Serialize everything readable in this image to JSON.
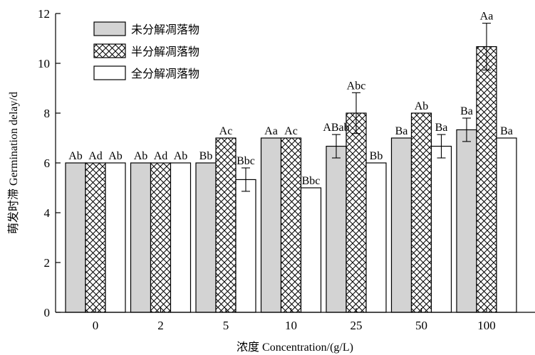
{
  "chart_data": {
    "type": "bar",
    "xlabel": "浓度 Concentration/(g/L)",
    "ylabel": "萌发时滞 Germination delay/d",
    "ylim": [
      0,
      12
    ],
    "yticks": [
      0,
      2,
      4,
      6,
      8,
      10,
      12
    ],
    "categories": [
      "0",
      "2",
      "5",
      "10",
      "25",
      "50",
      "100"
    ],
    "legend_position": "top-left",
    "series": [
      {
        "name": "未分解凋落物",
        "fill": "#d3d3d3",
        "pattern": "solid-gray",
        "values": [
          6,
          6,
          6,
          7,
          6.67,
          7,
          7.33
        ],
        "errors": [
          0,
          0,
          0,
          0,
          0.47,
          0,
          0.47
        ],
        "labels": [
          "Ab",
          "Ab",
          "Bb",
          "Aa",
          "ABab",
          "Ba",
          "Ba"
        ]
      },
      {
        "name": "半分解凋落物",
        "fill": "#ffffff",
        "pattern": "crosshatch",
        "values": [
          6,
          6,
          7,
          7,
          8,
          8,
          10.67
        ],
        "errors": [
          0,
          0,
          0,
          0,
          0.82,
          0,
          0.94
        ],
        "labels": [
          "Ad",
          "Ad",
          "Ac",
          "Ac",
          "Abc",
          "Ab",
          "Aa"
        ]
      },
      {
        "name": "全分解凋落物",
        "fill": "#ffffff",
        "pattern": "white",
        "values": [
          6,
          6,
          5.33,
          5,
          6,
          6.67,
          7
        ],
        "errors": [
          0,
          0,
          0.47,
          0,
          0,
          0.47,
          0
        ],
        "labels": [
          "Ab",
          "Ab",
          "Bbc",
          "Bbc",
          "Bb",
          "Ba",
          "Ba"
        ]
      }
    ]
  }
}
